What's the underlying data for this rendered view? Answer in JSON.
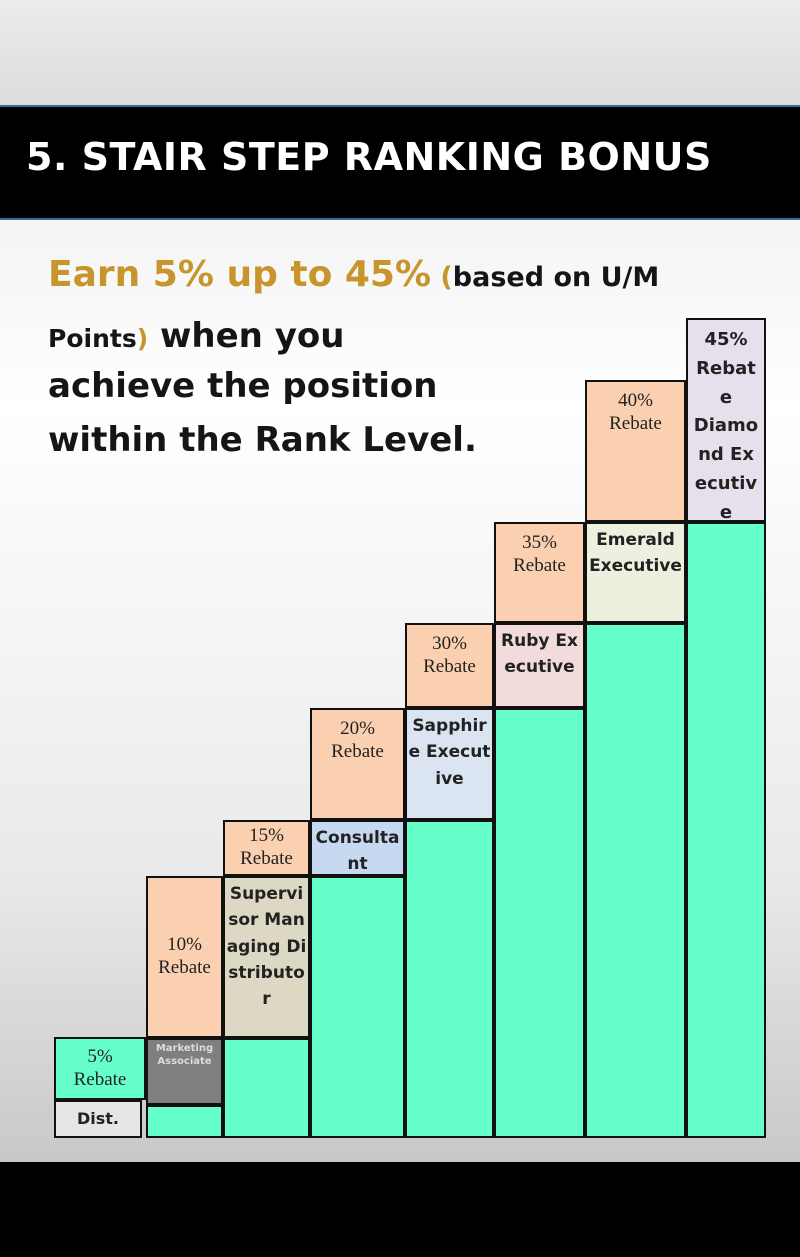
{
  "title": "5. STAIR STEP RANKING BONUS",
  "headline": {
    "highlight": "Earn 5% up to 45%",
    "paren_open": " (",
    "based_text": "based on U/M",
    "points_text": "Points",
    "paren_close": ")",
    "when_text": " when you",
    "line3": "achieve the position",
    "line4": "within the Rank Level."
  },
  "colors": {
    "title_bg": "#000000",
    "highlight": "#c8952c",
    "rebate_fill": "#fbd0b1",
    "step_fill": "#66ffcc"
  },
  "steps": [
    {
      "percent": "5%",
      "rebate": "Rebate",
      "rank": "Dist.",
      "rank_color": "#e6e6e6"
    },
    {
      "percent": "10%",
      "rebate": "Rebate",
      "rank": "Marketing Associate",
      "rank_color": "#7f7f7f"
    },
    {
      "percent": "15%",
      "rebate": "Rebate",
      "rank": "Supervisor Managing Distributor",
      "rank_color": "#ddd8c4"
    },
    {
      "percent": "20%",
      "rebate": "Rebate",
      "rank": "Consultant",
      "rank_color": "#c6d9f1"
    },
    {
      "percent": "30%",
      "rebate": "Rebate",
      "rank": "Sapphire Executive",
      "rank_color": "#dbe5f1"
    },
    {
      "percent": "35%",
      "rebate": "Rebate",
      "rank": "Ruby Executive",
      "rank_color": "#f2dcdb"
    },
    {
      "percent": "40%",
      "rebate": "Rebate",
      "rank": "Emerald Executive",
      "rank_color": "#ebf1de"
    },
    {
      "percent": "45%",
      "rebate": "Rebate",
      "rank": "Diamond Executive",
      "rank_color": "#e5e0ec"
    }
  ]
}
